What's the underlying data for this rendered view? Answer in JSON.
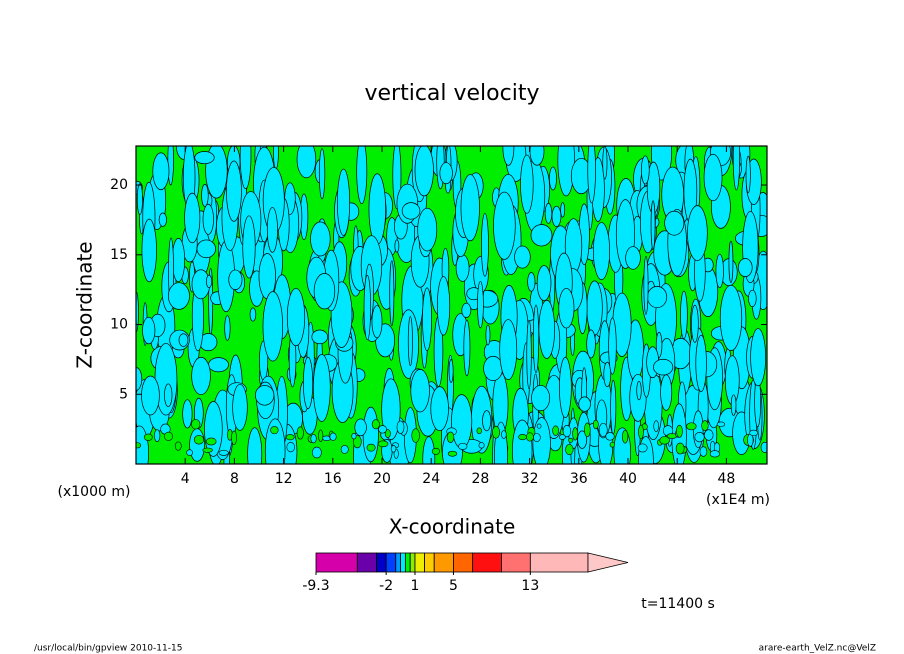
{
  "chart_data": {
    "type": "contour",
    "title": "vertical velocity",
    "xlabel": "X-coordinate",
    "ylabel": "Z-coordinate",
    "xunit": "(x1E4 m)",
    "yunit": "(x1000 m)",
    "xlim": [
      0,
      51.3
    ],
    "ylim": [
      0,
      22.8
    ],
    "xticks": [
      4,
      8,
      12,
      16,
      20,
      24,
      28,
      32,
      36,
      40,
      44,
      48
    ],
    "yticks": [
      5,
      10,
      15,
      20
    ],
    "colorbar": {
      "levels": [
        -9.3,
        -5,
        -3,
        -2,
        -1,
        -0.5,
        0,
        0.5,
        1,
        2,
        3,
        5,
        7,
        10,
        13,
        19
      ],
      "colors": [
        "#d600aa",
        "#6a00aa",
        "#0000c8",
        "#0040ff",
        "#0099ff",
        "#00e8ff",
        "#00ee00",
        "#88ee00",
        "#eeee00",
        "#ffcc00",
        "#ff9900",
        "#ff6600",
        "#ff1010",
        "#ff7070",
        "#ffb8b8",
        "#ffc8c8"
      ],
      "ticks": [
        -9.3,
        -2,
        1,
        5,
        13
      ]
    },
    "time_label": "t=11400 s",
    "footer_left": "/usr/local/bin/gpview  2010-11-15",
    "footer_right": "arare-earth_VelZ.nc@VelZ"
  }
}
